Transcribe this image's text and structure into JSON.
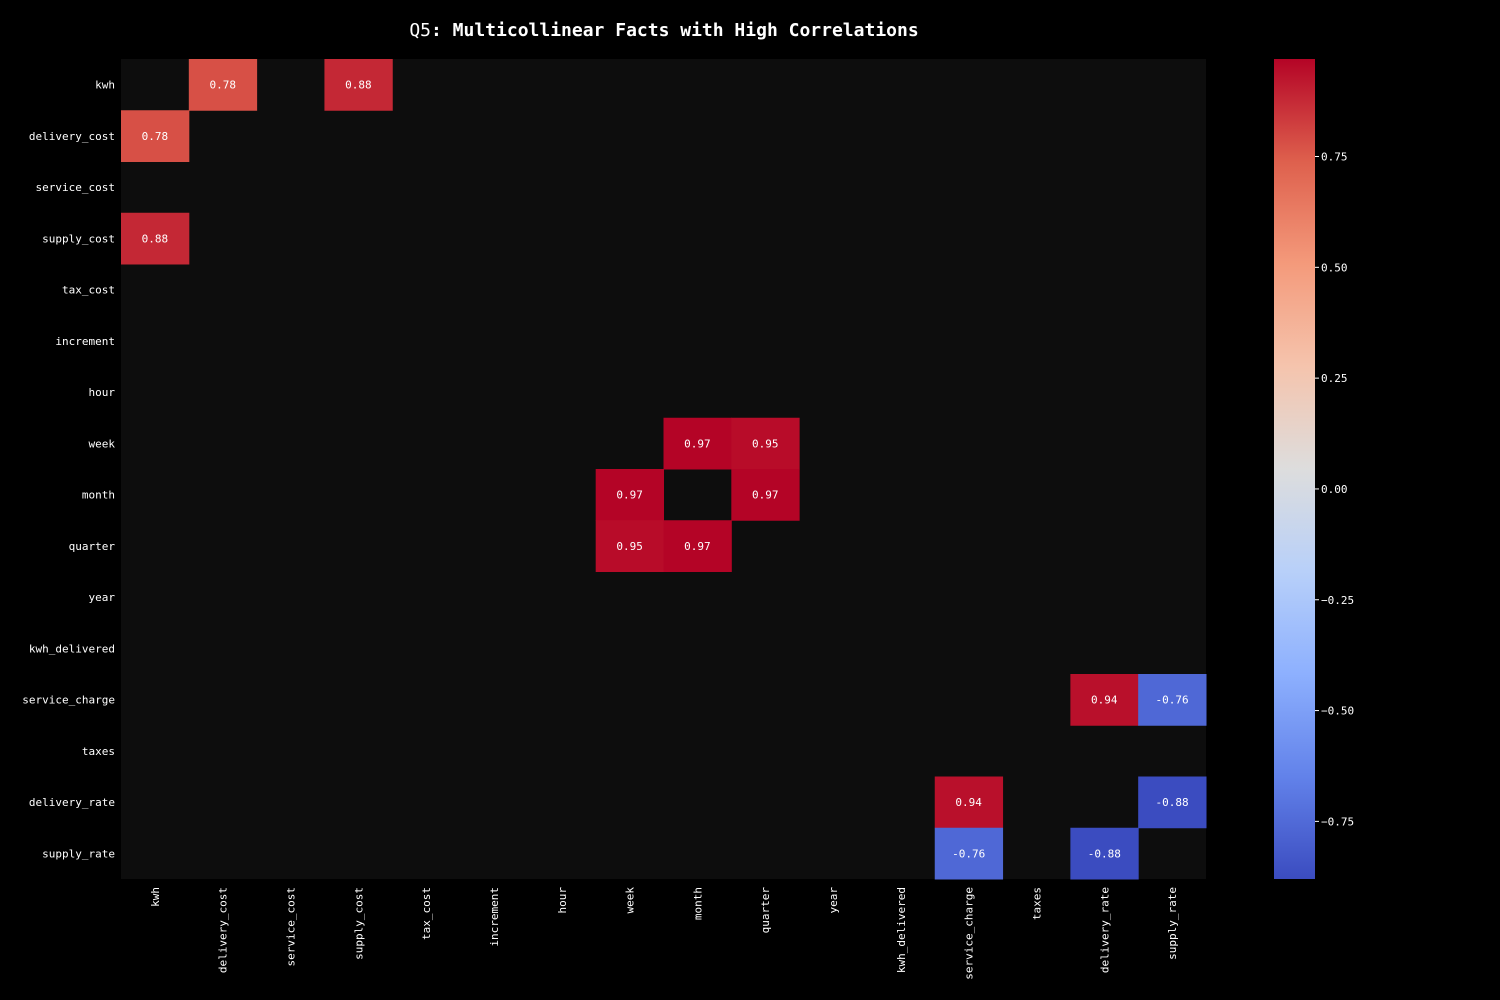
{
  "chart_data": {
    "type": "heatmap",
    "title_lead": "Q5",
    "title_rest": ": Multicollinear Facts with High Correlations",
    "variables": [
      "kwh",
      "delivery_cost",
      "service_cost",
      "supply_cost",
      "tax_cost",
      "increment",
      "hour",
      "week",
      "month",
      "quarter",
      "year",
      "kwh_delivered",
      "service_charge",
      "taxes",
      "delivery_rate",
      "supply_rate"
    ],
    "cells": [
      {
        "row": "kwh",
        "col": "delivery_cost",
        "value": 0.78
      },
      {
        "row": "kwh",
        "col": "supply_cost",
        "value": 0.88
      },
      {
        "row": "delivery_cost",
        "col": "kwh",
        "value": 0.78
      },
      {
        "row": "supply_cost",
        "col": "kwh",
        "value": 0.88
      },
      {
        "row": "week",
        "col": "month",
        "value": 0.97
      },
      {
        "row": "week",
        "col": "quarter",
        "value": 0.95
      },
      {
        "row": "month",
        "col": "week",
        "value": 0.97
      },
      {
        "row": "month",
        "col": "quarter",
        "value": 0.97
      },
      {
        "row": "quarter",
        "col": "week",
        "value": 0.95
      },
      {
        "row": "quarter",
        "col": "month",
        "value": 0.97
      },
      {
        "row": "service_charge",
        "col": "delivery_rate",
        "value": 0.94
      },
      {
        "row": "service_charge",
        "col": "supply_rate",
        "value": -0.76
      },
      {
        "row": "delivery_rate",
        "col": "service_charge",
        "value": 0.94
      },
      {
        "row": "delivery_rate",
        "col": "supply_rate",
        "value": -0.88
      },
      {
        "row": "supply_rate",
        "col": "service_charge",
        "value": -0.76
      },
      {
        "row": "supply_rate",
        "col": "delivery_rate",
        "value": -0.88
      }
    ],
    "colorbar": {
      "range": [
        -0.88,
        0.97
      ],
      "ticks": [
        0.75,
        0.5,
        0.25,
        0.0,
        -0.25,
        -0.5,
        -0.75
      ],
      "tick_labels": [
        "0.75",
        "0.50",
        "0.25",
        "0.00",
        "−0.25",
        "−0.50",
        "−0.75"
      ],
      "colormap": "coolwarm"
    },
    "colors": {
      "background": "#000000",
      "masked_cell": "#0d0d0d",
      "text": "#ffffff"
    }
  }
}
